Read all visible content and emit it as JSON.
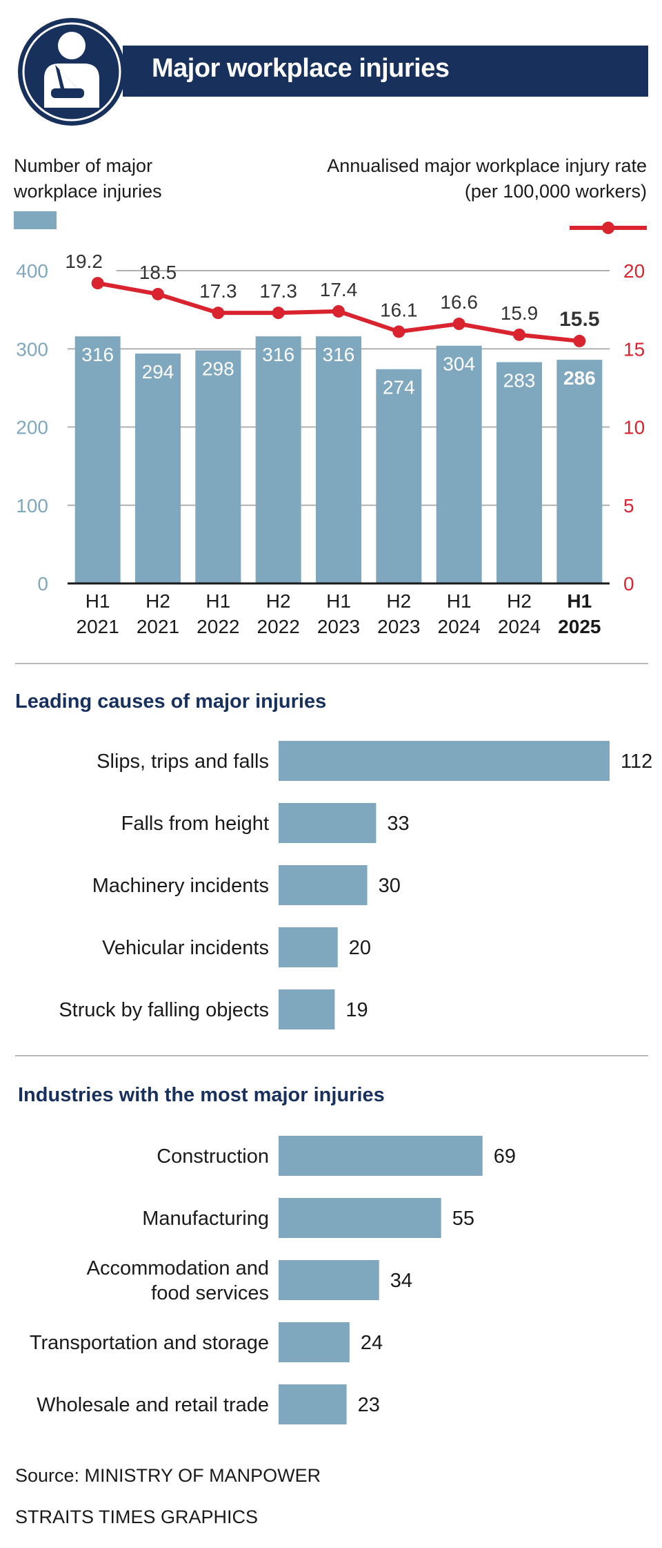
{
  "header": {
    "title": "Major workplace injuries",
    "icon": "injured-arm-sling-icon"
  },
  "legend": {
    "left_line1": "Number of major",
    "left_line2": "workplace injuries",
    "right_line1": "Annualised major workplace injury rate",
    "right_line2": "(per 100,000 workers)"
  },
  "colors": {
    "bar": "#7fa8bf",
    "line": "#d9232e",
    "navy": "#17305c",
    "axis_left": "#7fa8bf"
  },
  "chart_data": [
    {
      "type": "bar",
      "title": "Major workplace injuries",
      "categories": [
        [
          "H1",
          "2021"
        ],
        [
          "H2",
          "2021"
        ],
        [
          "H1",
          "2022"
        ],
        [
          "H2",
          "2022"
        ],
        [
          "H1",
          "2023"
        ],
        [
          "H2",
          "2023"
        ],
        [
          "H1",
          "2024"
        ],
        [
          "H2",
          "2024"
        ],
        [
          "H1",
          "2025"
        ]
      ],
      "highlight_index": 8,
      "series": [
        {
          "name": "Number of major workplace injuries",
          "type": "bar",
          "axis": "left",
          "values": [
            316,
            294,
            298,
            316,
            316,
            274,
            304,
            283,
            286
          ]
        },
        {
          "name": "Annualised major workplace injury rate (per 100,000 workers)",
          "type": "line",
          "axis": "right",
          "values": [
            19.2,
            18.5,
            17.3,
            17.3,
            17.4,
            16.1,
            16.6,
            15.9,
            15.5
          ],
          "labels": [
            "19.2",
            "18.5",
            "17.3",
            "17.3",
            "17.4",
            "16.1",
            "16.6",
            "15.9",
            "15.5"
          ]
        }
      ],
      "y_left": {
        "ylim": [
          0,
          400
        ],
        "ticks": [
          0,
          100,
          200,
          300,
          400
        ]
      },
      "y_right": {
        "ylim": [
          0,
          20
        ],
        "ticks": [
          0,
          5,
          10,
          15,
          20
        ]
      }
    },
    {
      "type": "bar",
      "orientation": "horizontal",
      "title": "Leading causes of major injuries",
      "categories": [
        "Slips, trips and falls",
        "Falls from height",
        "Machinery incidents",
        "Vehicular incidents",
        "Struck by falling objects"
      ],
      "values": [
        112,
        33,
        30,
        20,
        19
      ],
      "xlim": [
        0,
        112
      ]
    },
    {
      "type": "bar",
      "orientation": "horizontal",
      "title": "Industries with the most major injuries",
      "categories": [
        [
          "Construction"
        ],
        [
          "Manufacturing"
        ],
        [
          "Accommodation and",
          "food services"
        ],
        [
          "Transportation and storage"
        ],
        [
          "Wholesale and retail trade"
        ]
      ],
      "values": [
        69,
        55,
        34,
        24,
        23
      ],
      "xlim": [
        0,
        112
      ]
    }
  ],
  "footer": {
    "source": "Source: MINISTRY OF MANPOWER",
    "credit": "STRAITS TIMES GRAPHICS"
  }
}
